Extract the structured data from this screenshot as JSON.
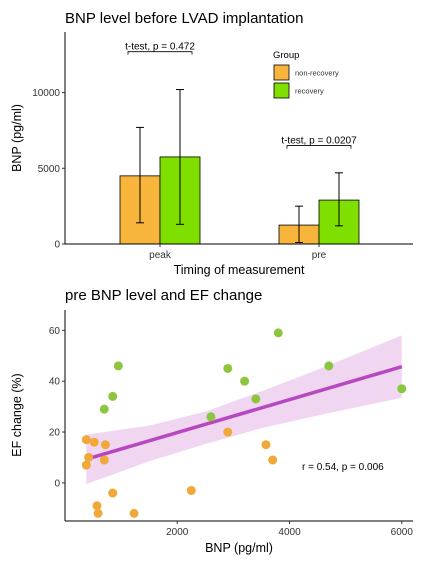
{
  "chart_data": [
    {
      "type": "bar",
      "title": "BNP level before LVAD implantation",
      "xlabel": "Timing of measurement",
      "ylabel": "BNP (pg/ml)",
      "categories": [
        "peak",
        "pre"
      ],
      "ylim": [
        0,
        14000
      ],
      "yticks": [
        0,
        5000,
        10000
      ],
      "legend": {
        "title": "Group",
        "position": "top-right"
      },
      "series": [
        {
          "name": "non-recovery",
          "color": "#f7b53b",
          "values": [
            4500,
            1250
          ],
          "err_low": [
            1400,
            100
          ],
          "err_high": [
            7700,
            2500
          ]
        },
        {
          "name": "recovery",
          "color": "#7fe000",
          "values": [
            5750,
            2900
          ],
          "err_low": [
            1300,
            1200
          ],
          "err_high": [
            10200,
            4700
          ]
        }
      ],
      "annotations": [
        {
          "label": "t-test, p = 0.472",
          "category": "peak",
          "y": 12700
        },
        {
          "label": "t-test, p = 0.0207",
          "category": "pre",
          "y": 6500
        }
      ]
    },
    {
      "type": "scatter",
      "title": "pre BNP level and EF change",
      "xlabel": "BNP (pg/ml)",
      "ylabel": "EF change (%)",
      "xlim": [
        0,
        6200
      ],
      "ylim": [
        -15,
        68
      ],
      "xticks": [
        2000,
        4000,
        6000
      ],
      "yticks": [
        0,
        20,
        40,
        60
      ],
      "series": [
        {
          "name": "non-recovery",
          "color": "#f0a838",
          "points": [
            [
              380,
              17
            ],
            [
              420,
              10
            ],
            [
              380,
              7
            ],
            [
              520,
              16
            ],
            [
              570,
              -9
            ],
            [
              590,
              -12
            ],
            [
              720,
              15
            ],
            [
              700,
              9
            ],
            [
              850,
              -4
            ],
            [
              1230,
              -12
            ],
            [
              2250,
              -3
            ],
            [
              2900,
              20
            ],
            [
              3580,
              15
            ],
            [
              3700,
              9
            ]
          ]
        },
        {
          "name": "recovery",
          "color": "#8cc63f",
          "points": [
            [
              700,
              29
            ],
            [
              850,
              34
            ],
            [
              950,
              46
            ],
            [
              2600,
              26
            ],
            [
              2900,
              45
            ],
            [
              3200,
              40
            ],
            [
              3400,
              33
            ],
            [
              3800,
              59
            ],
            [
              4700,
              46
            ],
            [
              6000,
              37
            ]
          ]
        }
      ],
      "fit": {
        "color": "#b648c0",
        "band_color": "#e6b4e8",
        "line": [
          [
            380,
            9.3
          ],
          [
            6000,
            45.7
          ]
        ],
        "ci_lower": [
          [
            380,
            -0.5
          ],
          [
            1500,
            8.5
          ],
          [
            2500,
            15.3
          ],
          [
            3500,
            21.5
          ],
          [
            4500,
            26.5
          ],
          [
            6000,
            33.5
          ]
        ],
        "ci_upper": [
          [
            380,
            19
          ],
          [
            1500,
            22.5
          ],
          [
            2500,
            28
          ],
          [
            3500,
            36
          ],
          [
            4500,
            44.5
          ],
          [
            6000,
            58
          ]
        ]
      },
      "annotation": {
        "label": "r = 0.54, p = 0.006",
        "x": 4950,
        "y": 5
      }
    }
  ]
}
